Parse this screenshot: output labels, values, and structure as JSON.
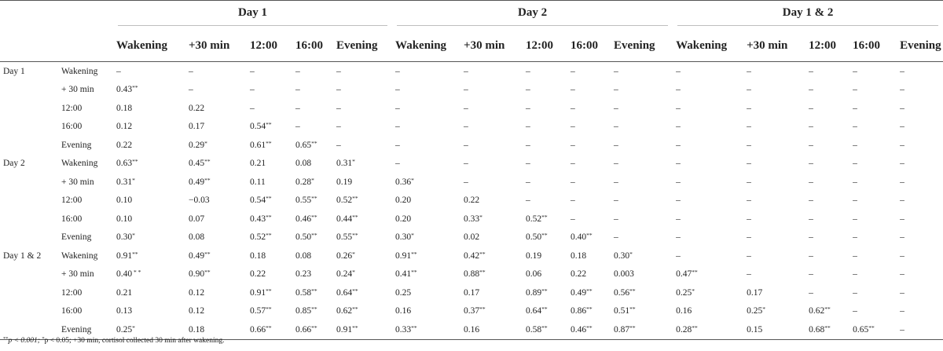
{
  "header": {
    "groups": [
      "Day 1",
      "Day 2",
      "Day 1 & 2"
    ],
    "columns": [
      "Wakening",
      "+30 min",
      "12:00",
      "16:00",
      "Evening"
    ]
  },
  "rows": [
    {
      "group": "Day 1",
      "label": "Wakening",
      "cells": [
        "–",
        "–",
        "–",
        "–",
        "–",
        "–",
        "–",
        "–",
        "–",
        "–",
        "–",
        "–",
        "–",
        "–",
        "–"
      ]
    },
    {
      "group": "",
      "label": "+ 30 min",
      "cells": [
        "0.43**",
        "–",
        "–",
        "–",
        "–",
        "–",
        "–",
        "–",
        "–",
        "–",
        "–",
        "–",
        "–",
        "–",
        "–"
      ]
    },
    {
      "group": "",
      "label": "12:00",
      "cells": [
        "0.18",
        "0.22",
        "–",
        "–",
        "–",
        "–",
        "–",
        "–",
        "–",
        "–",
        "–",
        "–",
        "–",
        "–",
        "–"
      ]
    },
    {
      "group": "",
      "label": "16:00",
      "cells": [
        "0.12",
        "0.17",
        "0.54**",
        "–",
        "–",
        "–",
        "–",
        "–",
        "–",
        "–",
        "–",
        "–",
        "–",
        "–",
        "–"
      ]
    },
    {
      "group": "",
      "label": "Evening",
      "cells": [
        "0.22",
        "0.29*",
        "0.61**",
        "0.65**",
        "–",
        "–",
        "–",
        "–",
        "–",
        "–",
        "–",
        "–",
        "–",
        "–",
        "–"
      ]
    },
    {
      "group": "Day 2",
      "label": "Wakening",
      "cells": [
        "0.63**",
        "0.45**",
        "0.21",
        "0.08",
        "0.31*",
        "–",
        "–",
        "–",
        "–",
        "–",
        "–",
        "–",
        "–",
        "–",
        "–"
      ]
    },
    {
      "group": "",
      "label": "+ 30 min",
      "cells": [
        "0.31*",
        "0.49**",
        "0.11",
        "0.28*",
        "0.19",
        "0.36*",
        "–",
        "–",
        "–",
        "–",
        "–",
        "–",
        "–",
        "–",
        "–"
      ]
    },
    {
      "group": "",
      "label": "12:00",
      "cells": [
        "0.10",
        "−0.03",
        "0.54**",
        "0.55**",
        "0.52**",
        "0.20",
        "0.22",
        "–",
        "–",
        "–",
        "–",
        "–",
        "–",
        "–",
        "–"
      ]
    },
    {
      "group": "",
      "label": "16:00",
      "cells": [
        "0.10",
        "0.07",
        "0.43**",
        "0.46**",
        "0.44**",
        "0.20",
        "0.33*",
        "0.52**",
        "–",
        "–",
        "–",
        "–",
        "–",
        "–",
        "–"
      ]
    },
    {
      "group": "",
      "label": "Evening",
      "cells": [
        "0.30*",
        "0.08",
        "0.52**",
        "0.50**",
        "0.55**",
        "0.30*",
        "0.02",
        "0.50**",
        "0.40**",
        "–",
        "–",
        "–",
        "–",
        "–",
        "–"
      ]
    },
    {
      "group": "Day 1 & 2",
      "label": "Wakening",
      "cells": [
        "0.91**",
        "0.49**",
        "0.18",
        "0.08",
        "0.26*",
        "0.91**",
        "0.42**",
        "0.19",
        "0.18",
        "0.30*",
        "–",
        "–",
        "–",
        "–",
        "–"
      ]
    },
    {
      "group": "",
      "label": "+ 30 min",
      "cells": [
        "0.40 * *",
        "0.90**",
        "0.22",
        "0.23",
        "0.24*",
        "0.41**",
        "0.88**",
        "0.06",
        "0.22",
        "0.003",
        "0.47**",
        "–",
        "–",
        "–",
        "–"
      ]
    },
    {
      "group": "",
      "label": "12:00",
      "cells": [
        "0.21",
        "0.12",
        "0.91**",
        "0.58**",
        "0.64**",
        "0.25",
        "0.17",
        "0.89**",
        "0.49**",
        "0.56**",
        "0.25*",
        "0.17",
        "–",
        "–",
        "–"
      ]
    },
    {
      "group": "",
      "label": "16:00",
      "cells": [
        "0.13",
        "0.12",
        "0.57**",
        "0.85**",
        "0.62**",
        "0.16",
        "0.37**",
        "0.64**",
        "0.86**",
        "0.51**",
        "0.16",
        "0.25*",
        "0.62**",
        "–",
        "–"
      ]
    },
    {
      "group": "",
      "label": "Evening",
      "cells": [
        "0.25*",
        "0.18",
        "0.66**",
        "0.66**",
        "0.91**",
        "0.33**",
        "0.16",
        "0.58**",
        "0.46**",
        "0.87**",
        "0.28**",
        "0.15",
        "0.68**",
        "0.65**",
        "–"
      ]
    }
  ],
  "footnote": {
    "sig1_mark": "**",
    "sig1_text": "p < 0.001; ",
    "sig2_mark": "*",
    "sig2_text": "p < 0.05; +30 min, cortisol collected 30 min after wakening."
  }
}
